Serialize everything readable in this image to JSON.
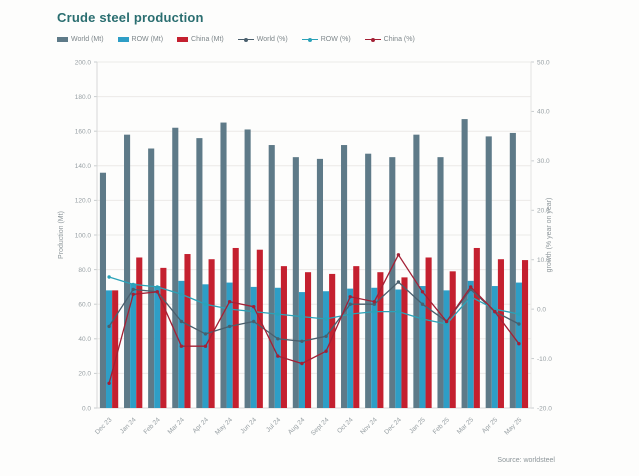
{
  "page": {
    "title": "Crude steel production",
    "source": "Source: worldsteel"
  },
  "chart_data": {
    "type": "combo-bar-line",
    "title": "Crude steel production",
    "legend_position": "top",
    "grid": true,
    "categories": [
      "Dec 23",
      "Jan 24",
      "Feb 24",
      "Mar 24",
      "Apr 24",
      "May 24",
      "Jun 24",
      "Jul 24",
      "Aug 24",
      "Sept 24",
      "Oct 24",
      "Nov 24",
      "Dec 24",
      "Jan 25",
      "Feb 25",
      "Mar 25",
      "Apr 25",
      "May 25"
    ],
    "left_axis": {
      "title": "Production (Mt)",
      "min": 0,
      "max": 200,
      "step": 20
    },
    "right_axis": {
      "title": "growth (% year on year)",
      "min": -20,
      "max": 50,
      "step": 10
    },
    "bar_series": [
      {
        "name": "World (Mt)",
        "color": "#5e7a88",
        "axis": "left",
        "values": [
          136,
          158,
          150,
          162,
          156,
          165,
          161,
          152,
          145,
          144,
          152,
          147,
          145,
          158,
          145,
          167,
          157,
          159
        ]
      },
      {
        "name": "ROW (Mt)",
        "color": "#2e9ec6",
        "axis": "left",
        "values": [
          68,
          72,
          70.5,
          73.5,
          71.5,
          72.5,
          70,
          69.5,
          67,
          67.5,
          69,
          69.5,
          68.5,
          70.5,
          68,
          73.5,
          70.5,
          72.5
        ]
      },
      {
        "name": "China (Mt)",
        "color": "#c4202f",
        "axis": "left",
        "values": [
          68,
          87,
          81,
          89,
          86,
          92.5,
          91.5,
          82,
          78.5,
          77.5,
          82,
          78.5,
          75.5,
          87,
          79,
          92.5,
          86,
          85.5
        ]
      }
    ],
    "line_series": [
      {
        "name": "World (%)",
        "color": "#4a5f6d",
        "axis": "right",
        "values": [
          -3.5,
          4,
          3.5,
          -2.5,
          -5,
          -3.5,
          -2.5,
          -6,
          -6.5,
          -5.5,
          1,
          1,
          5.5,
          1,
          -2.5,
          4,
          -0.5,
          -3
        ]
      },
      {
        "name": "ROW (%)",
        "color": "#2aa2b8",
        "axis": "right",
        "values": [
          6.5,
          5,
          4.5,
          3,
          1,
          0,
          -0.5,
          -1,
          -1.5,
          -2,
          -1,
          -0.5,
          -0.5,
          -2,
          -3,
          2.5,
          0,
          -1
        ]
      },
      {
        "name": "China (%)",
        "color": "#a32035",
        "axis": "right",
        "values": [
          -15,
          3,
          3.5,
          -7.5,
          -7.5,
          1.5,
          0.5,
          -9.5,
          -11,
          -8.5,
          2.5,
          1.5,
          11,
          3.5,
          -2.5,
          4.5,
          -0.5,
          -7
        ]
      }
    ]
  }
}
